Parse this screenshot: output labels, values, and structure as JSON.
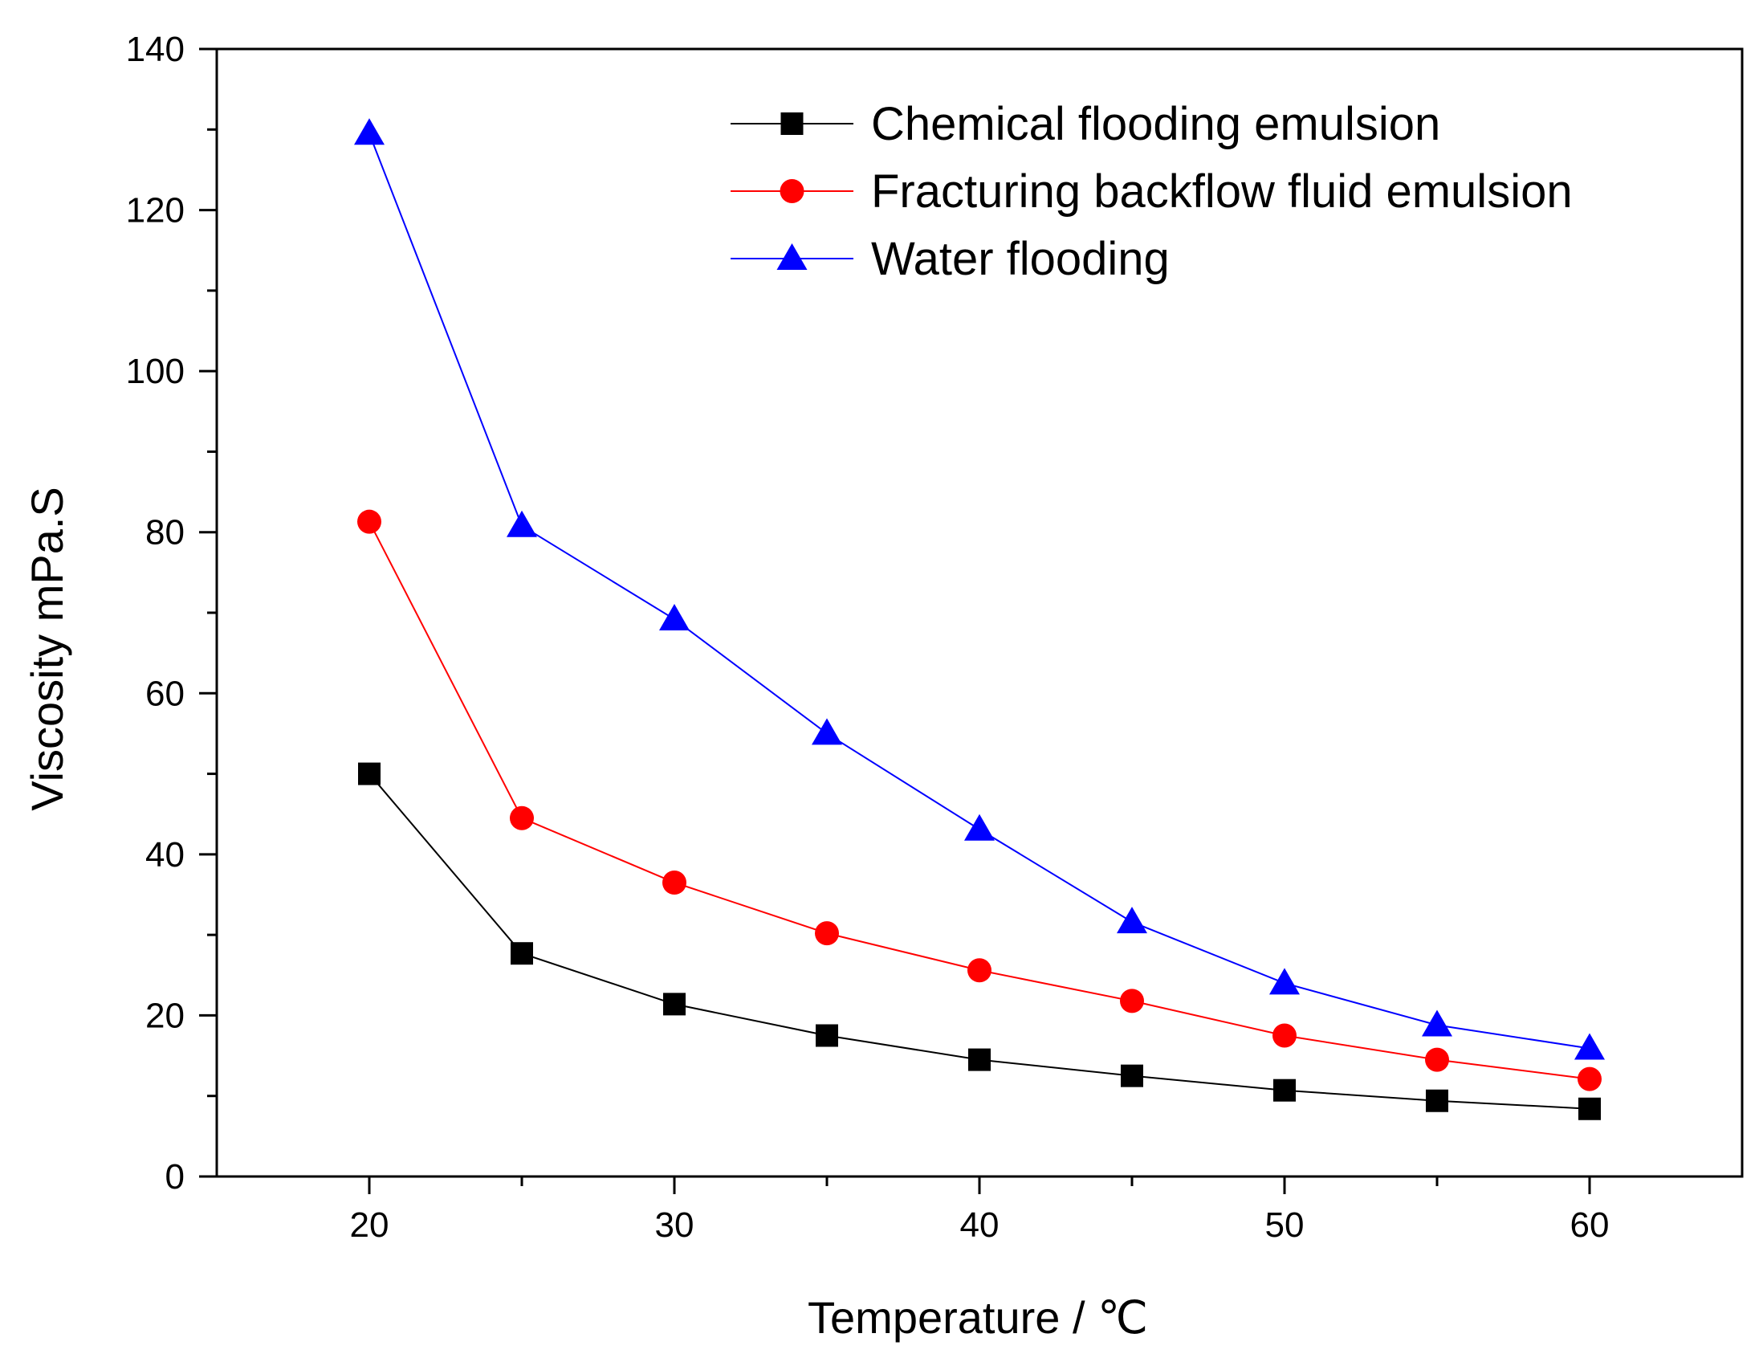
{
  "chart_data": {
    "type": "line",
    "title": "",
    "xlabel": "Temperature / ℃",
    "ylabel": "Viscosity mPa.S",
    "xlim": [
      15,
      65
    ],
    "ylim": [
      0,
      140
    ],
    "x_ticks": [
      20,
      30,
      40,
      50,
      60
    ],
    "x_minor_ticks": [
      25,
      35,
      45,
      55
    ],
    "y_ticks": [
      0,
      20,
      40,
      60,
      80,
      100,
      120,
      140
    ],
    "x": [
      20,
      25,
      30,
      35,
      40,
      45,
      50,
      55,
      60
    ],
    "legend_position": "top-right",
    "grid": false,
    "series": [
      {
        "name": "Chemical flooding emulsion",
        "color": "#000000",
        "marker": "square",
        "values": [
          50,
          27.7,
          21.4,
          17.5,
          14.5,
          12.5,
          10.7,
          9.4,
          8.4
        ]
      },
      {
        "name": "Fracturing backflow fluid emulsion",
        "color": "#ff0000",
        "marker": "circle",
        "values": [
          81.3,
          44.5,
          36.5,
          30.2,
          25.6,
          21.8,
          17.5,
          14.5,
          12.1
        ]
      },
      {
        "name": "Water flooding",
        "color": "#0000ff",
        "marker": "triangle",
        "values": [
          129.5,
          80.8,
          69.2,
          55,
          43.1,
          31.6,
          24,
          18.8,
          15.9
        ]
      }
    ]
  }
}
